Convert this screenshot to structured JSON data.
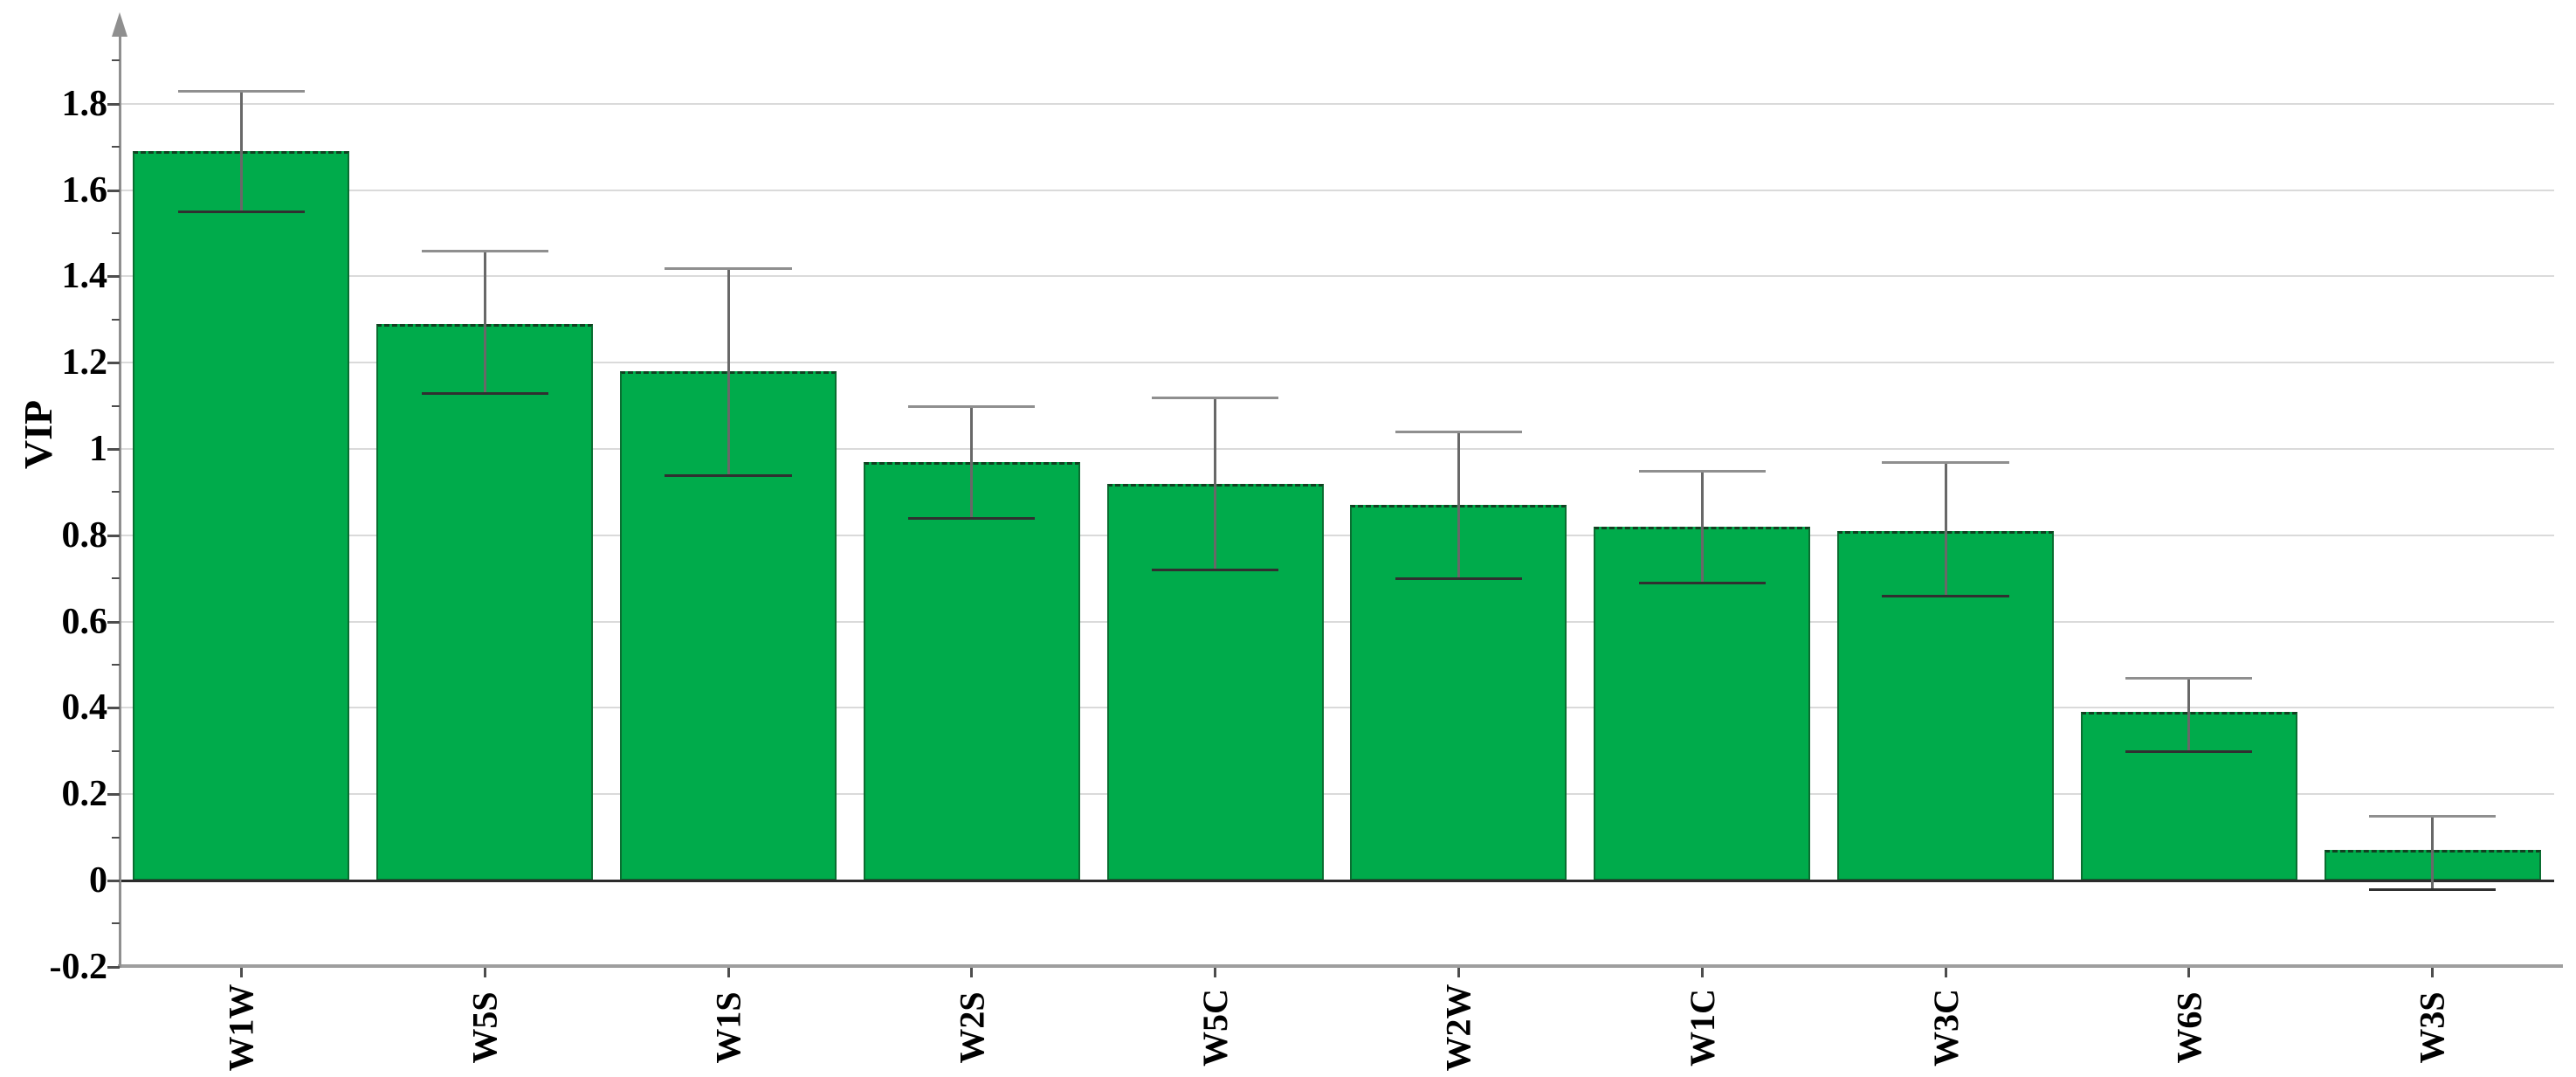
{
  "chart_data": {
    "type": "bar",
    "title": "",
    "xlabel": "",
    "ylabel": "VIP",
    "categories": [
      "W1W",
      "W5S",
      "W1S",
      "W2S",
      "W5C",
      "W2W",
      "W1C",
      "W3C",
      "W6S",
      "W3S"
    ],
    "values": [
      1.69,
      1.29,
      1.18,
      0.97,
      0.92,
      0.87,
      0.82,
      0.81,
      0.39,
      0.07
    ],
    "error_high": [
      1.83,
      1.46,
      1.42,
      1.1,
      1.12,
      1.04,
      0.95,
      0.97,
      0.47,
      0.15
    ],
    "error_low": [
      1.55,
      1.13,
      0.94,
      0.84,
      0.72,
      0.7,
      0.69,
      0.66,
      0.3,
      -0.02
    ],
    "ylim": [
      -0.2,
      1.95
    ],
    "yticks": [
      -0.2,
      0,
      0.2,
      0.4,
      0.6,
      0.8,
      1,
      1.2,
      1.4,
      1.6,
      1.8
    ],
    "ytick_labels": [
      "-0.2",
      "0",
      "0.2",
      "0.4",
      "0.6",
      "0.8",
      "1",
      "1.2",
      "1.4",
      "1.6",
      "1.8"
    ],
    "yticks_minor": [
      -0.1,
      0.1,
      0.3,
      0.5,
      0.7,
      0.9,
      1.1,
      1.3,
      1.5,
      1.7,
      1.9
    ],
    "grid": true,
    "legend_position": "none",
    "axis_arrow": true,
    "colors": {
      "bar_fill": "#00ab4b",
      "bar_border": "#0a6e31",
      "bar_top_dash": "#123f21",
      "gridline": "#dadada",
      "zero_line": "#2b2b2b",
      "bottom_frame": "#9e9e9e",
      "y_axis_line": "#8f8f8f",
      "arrow": "#8f8f8f",
      "tick": "#4d4d4d",
      "error_line": "#686868",
      "error_cap_top": "#8f8f8f",
      "error_cap_bottom": "#303030",
      "text": "#000000"
    }
  }
}
